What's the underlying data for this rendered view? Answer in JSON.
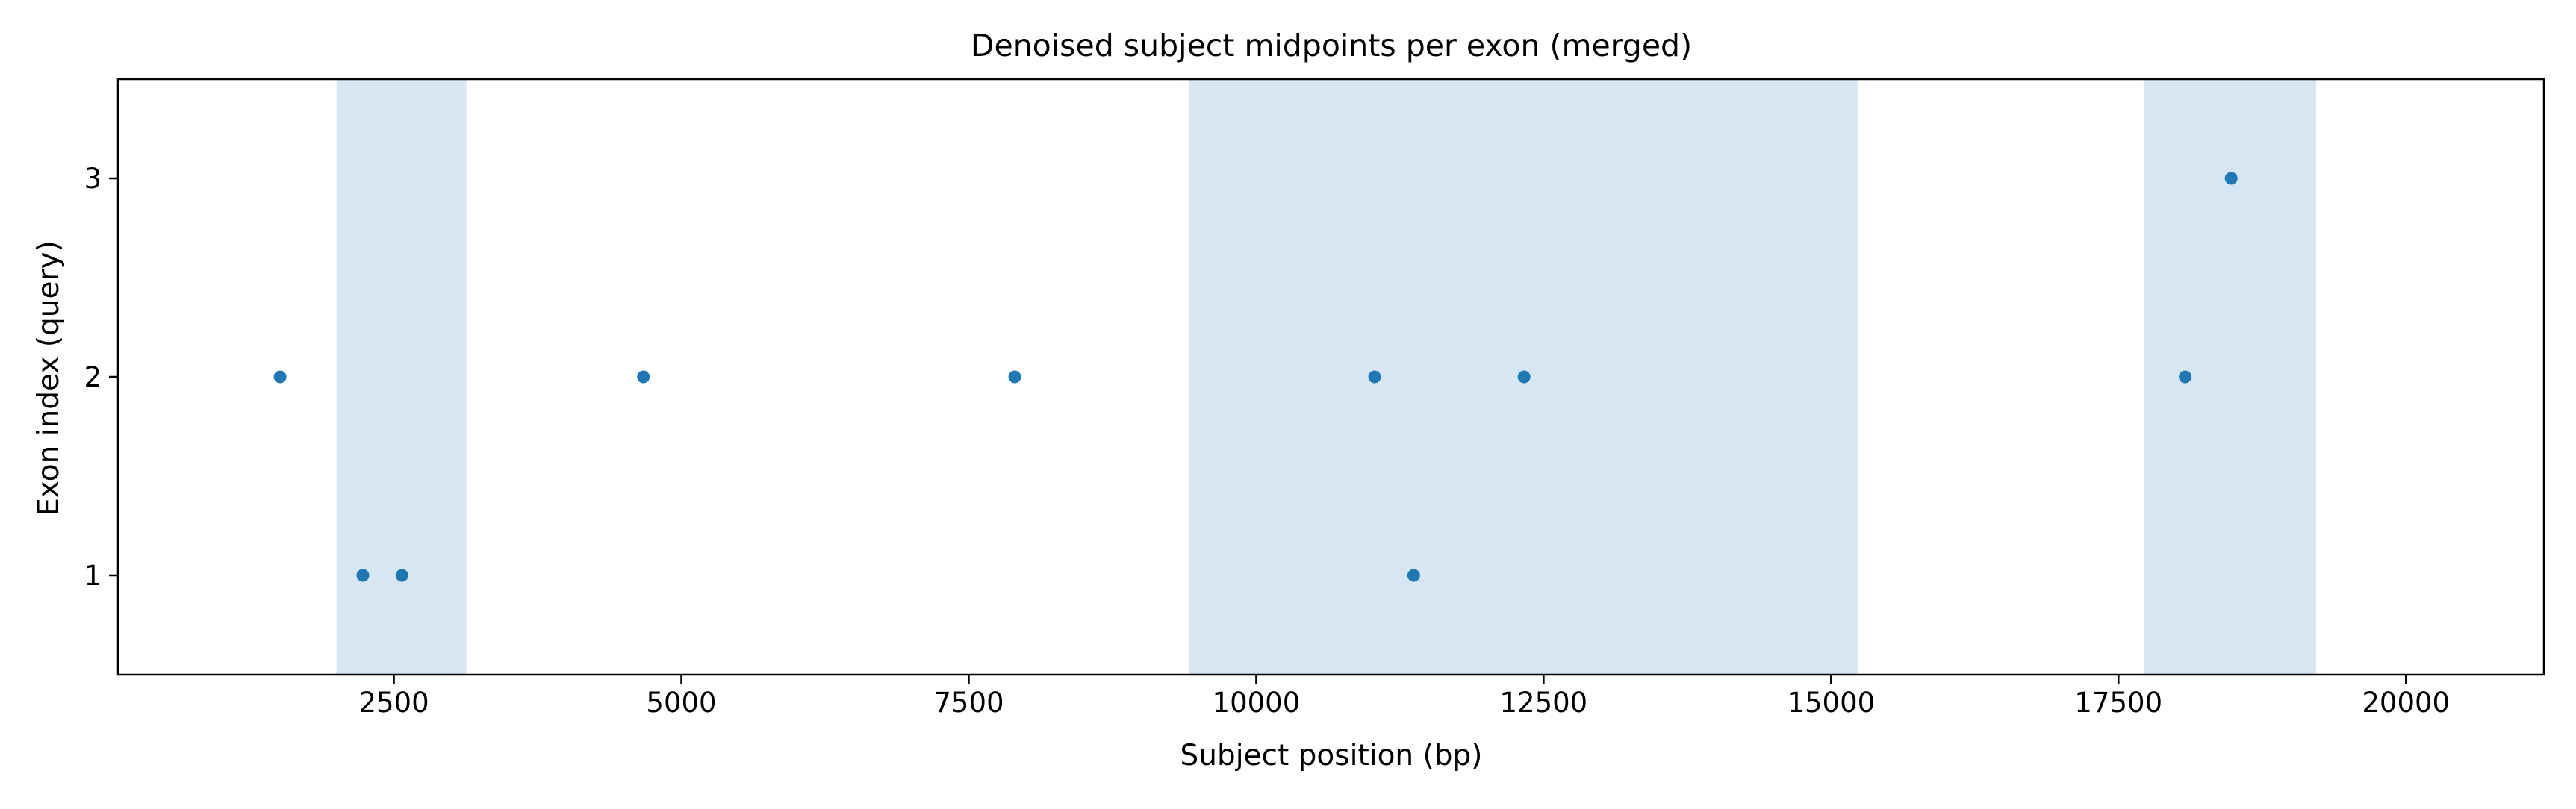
{
  "chart_data": {
    "type": "scatter",
    "title": "Denoised subject midpoints per exon (merged)",
    "xlabel": "Subject position (bp)",
    "ylabel": "Exon index (query)",
    "xlim": [
      100,
      21200
    ],
    "ylim": [
      0.5,
      3.5
    ],
    "x_ticks": [
      2500,
      5000,
      7500,
      10000,
      12500,
      15000,
      17500,
      20000
    ],
    "x_tick_labels": [
      "2500",
      "5000",
      "7500",
      "10000",
      "12500",
      "15000",
      "17500",
      "20000"
    ],
    "y_ticks": [
      1,
      2,
      3
    ],
    "y_tick_labels": [
      "1",
      "2",
      "3"
    ],
    "grid": false,
    "legend": "none",
    "point_color": "#1f77b4",
    "shade_color": "#d6e6f2",
    "shaded_regions": [
      {
        "x_start": 2000,
        "x_end": 3130
      },
      {
        "x_start": 9420,
        "x_end": 15230
      },
      {
        "x_start": 17720,
        "x_end": 19220
      }
    ],
    "points": [
      {
        "x": 1510,
        "y": 2
      },
      {
        "x": 2230,
        "y": 1
      },
      {
        "x": 2570,
        "y": 1
      },
      {
        "x": 4670,
        "y": 2
      },
      {
        "x": 7900,
        "y": 2
      },
      {
        "x": 11030,
        "y": 2
      },
      {
        "x": 11370,
        "y": 1
      },
      {
        "x": 12330,
        "y": 2
      },
      {
        "x": 18080,
        "y": 2
      },
      {
        "x": 18480,
        "y": 3
      }
    ]
  }
}
